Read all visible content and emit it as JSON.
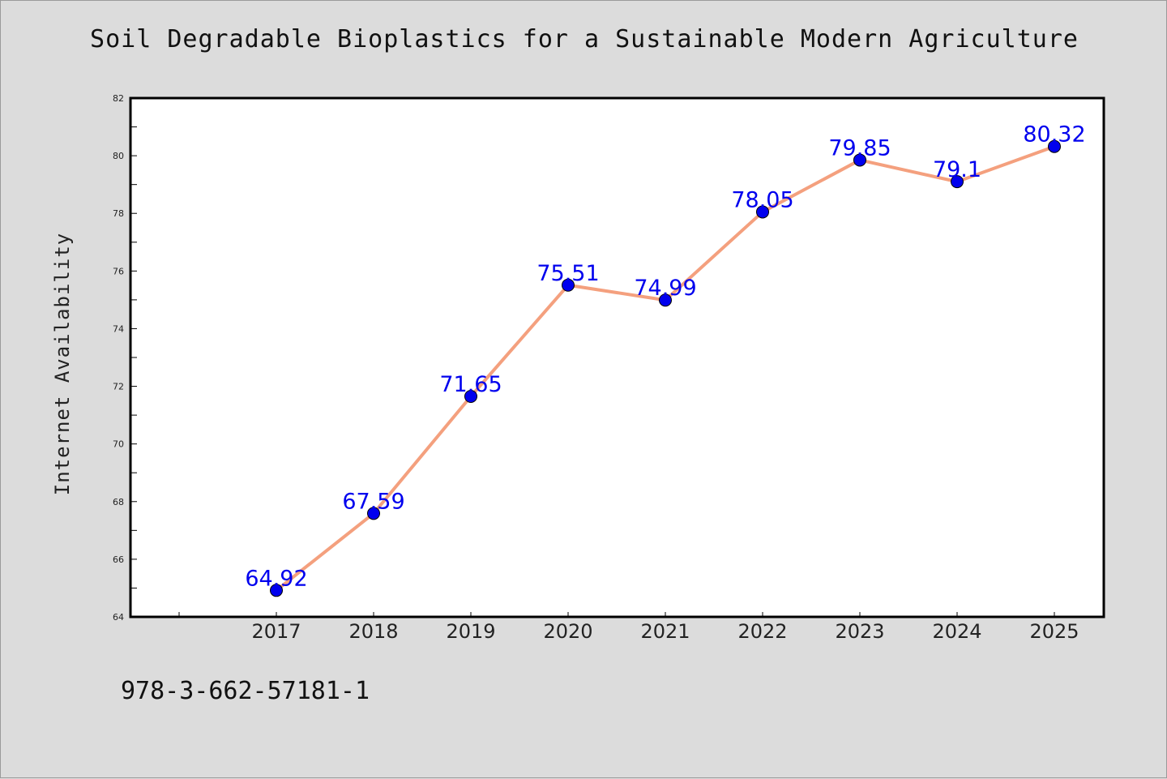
{
  "title": "Soil Degradable Bioplastics for a Sustainable Modern Agriculture",
  "footer_code": "978-3-662-57181-1",
  "colors": {
    "background": "#dcdcdc",
    "plot_background": "#ffffff",
    "line": "#f4a07e",
    "marker": "#0000ee",
    "data_label": "#0000ee"
  },
  "chart_data": {
    "type": "line",
    "title": "Soil Degradable Bioplastics for a Sustainable Modern Agriculture",
    "xlabel": "",
    "ylabel": "Internet Availability",
    "x": [
      "2017",
      "2018",
      "2019",
      "2020",
      "2021",
      "2022",
      "2023",
      "2024",
      "2025"
    ],
    "series": [
      {
        "values": [
          64.92,
          67.59,
          71.65,
          75.51,
          74.99,
          78.05,
          79.85,
          79.1,
          80.32
        ]
      }
    ],
    "data_labels": [
      "64.92",
      "67.59",
      "71.65",
      "75.51",
      "74.99",
      "78.05",
      "79.85",
      "79.1",
      "80.32"
    ],
    "ylim": [
      64,
      82
    ],
    "yticks": [
      "64",
      "66",
      "68",
      "70",
      "72",
      "74",
      "76",
      "78",
      "80",
      "82"
    ],
    "grid": false,
    "legend": "none"
  }
}
